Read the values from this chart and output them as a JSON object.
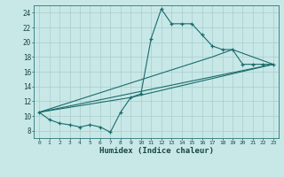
{
  "xlabel": "Humidex (Indice chaleur)",
  "background_color": "#c8e8e8",
  "grid_color": "#aacccc",
  "line_color": "#1a6b6b",
  "xlim": [
    -0.5,
    23.5
  ],
  "ylim": [
    7,
    25
  ],
  "x_ticks": [
    0,
    1,
    2,
    3,
    4,
    5,
    6,
    7,
    8,
    9,
    10,
    11,
    12,
    13,
    14,
    15,
    16,
    17,
    18,
    19,
    20,
    21,
    22,
    23
  ],
  "y_ticks": [
    8,
    10,
    12,
    14,
    16,
    18,
    20,
    22,
    24
  ],
  "line1_x": [
    0,
    1,
    2,
    3,
    4,
    5,
    6,
    7,
    8,
    9,
    10,
    11,
    12,
    13,
    14,
    15,
    16,
    17,
    18,
    19,
    20,
    21,
    22,
    23
  ],
  "line1_y": [
    10.5,
    9.5,
    9.0,
    8.8,
    8.5,
    8.8,
    8.5,
    7.8,
    10.5,
    12.5,
    13.0,
    20.5,
    24.5,
    22.5,
    22.5,
    22.5,
    21.0,
    19.5,
    19.0,
    19.0,
    17.0,
    17.0,
    17.0,
    17.0
  ],
  "line2_x": [
    0,
    23
  ],
  "line2_y": [
    10.5,
    17.0
  ],
  "line3_x": [
    0,
    9,
    23
  ],
  "line3_y": [
    10.5,
    12.5,
    17.0
  ],
  "line4_x": [
    0,
    17,
    19,
    23
  ],
  "line4_y": [
    10.5,
    18.0,
    19.0,
    17.0
  ]
}
